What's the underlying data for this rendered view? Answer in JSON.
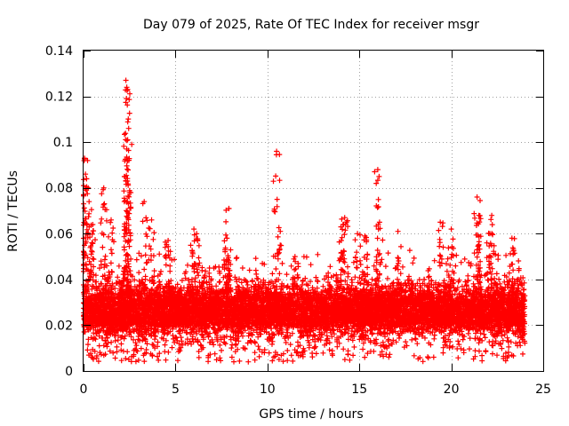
{
  "chart_data": {
    "type": "scatter",
    "title": "Day 079 of 2025, Rate Of TEC Index for receiver msgr",
    "xlabel": "GPS time / hours",
    "ylabel": "ROTI / TECUs",
    "xlim": [
      0,
      25
    ],
    "ylim": [
      0,
      0.14
    ],
    "xticks": [
      0,
      5,
      10,
      15,
      20,
      25
    ],
    "yticks": [
      0,
      0.02,
      0.04,
      0.06,
      0.08,
      0.1,
      0.12,
      0.14
    ],
    "grid": true,
    "marker": "+",
    "color": "#ff0000",
    "x_range_of_points": [
      0,
      24
    ],
    "baseline_band": [
      0.01,
      0.035
    ],
    "peaks": [
      {
        "x": 0.05,
        "y": 0.093
      },
      {
        "x": 0.1,
        "y": 0.086
      },
      {
        "x": 0.15,
        "y": 0.079
      },
      {
        "x": 0.3,
        "y": 0.074
      },
      {
        "x": 0.5,
        "y": 0.064
      },
      {
        "x": 1.1,
        "y": 0.08
      },
      {
        "x": 1.5,
        "y": 0.066
      },
      {
        "x": 2.3,
        "y": 0.127
      },
      {
        "x": 2.35,
        "y": 0.124
      },
      {
        "x": 2.4,
        "y": 0.123
      },
      {
        "x": 2.45,
        "y": 0.106
      },
      {
        "x": 2.35,
        "y": 0.097
      },
      {
        "x": 2.4,
        "y": 0.092
      },
      {
        "x": 2.3,
        "y": 0.083
      },
      {
        "x": 3.3,
        "y": 0.074
      },
      {
        "x": 3.7,
        "y": 0.066
      },
      {
        "x": 4.6,
        "y": 0.057
      },
      {
        "x": 6.0,
        "y": 0.062
      },
      {
        "x": 6.15,
        "y": 0.06
      },
      {
        "x": 7.8,
        "y": 0.058
      },
      {
        "x": 7.9,
        "y": 0.071
      },
      {
        "x": 10.5,
        "y": 0.096
      },
      {
        "x": 10.7,
        "y": 0.061
      },
      {
        "x": 11.5,
        "y": 0.05
      },
      {
        "x": 14.2,
        "y": 0.067
      },
      {
        "x": 14.0,
        "y": 0.063
      },
      {
        "x": 14.9,
        "y": 0.06
      },
      {
        "x": 15.3,
        "y": 0.059
      },
      {
        "x": 16.0,
        "y": 0.088
      },
      {
        "x": 16.1,
        "y": 0.065
      },
      {
        "x": 17.1,
        "y": 0.061
      },
      {
        "x": 19.4,
        "y": 0.065
      },
      {
        "x": 20.0,
        "y": 0.062
      },
      {
        "x": 21.4,
        "y": 0.076
      },
      {
        "x": 21.5,
        "y": 0.068
      },
      {
        "x": 22.2,
        "y": 0.068
      },
      {
        "x": 22.1,
        "y": 0.06
      },
      {
        "x": 23.3,
        "y": 0.058
      }
    ]
  }
}
